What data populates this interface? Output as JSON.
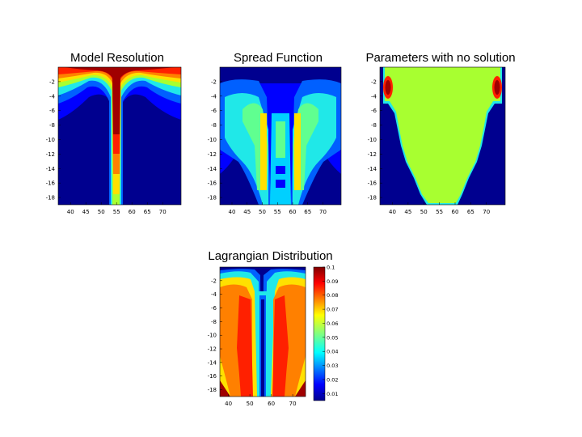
{
  "chart_data": [
    {
      "type": "heatmap",
      "title": "Model Resolution",
      "x_ticks": [
        "40",
        "45",
        "50",
        "55",
        "60",
        "65",
        "70"
      ],
      "y_ticks": [
        "-2",
        "-4",
        "-6",
        "-8",
        "-10",
        "-12",
        "-14",
        "-16",
        "-18"
      ],
      "xlim": [
        36,
        76
      ],
      "ylim": [
        -19,
        0
      ],
      "pattern": "strong values near the surface everywhere, deep narrow high-value column centred near x=55, background low"
    },
    {
      "type": "heatmap",
      "title": "Spread Function",
      "x_ticks": [
        "40",
        "45",
        "50",
        "55",
        "60",
        "65",
        "70"
      ],
      "y_ticks": [
        "-2",
        "-4",
        "-6",
        "-8",
        "-10",
        "-12",
        "-14",
        "-16",
        "-18"
      ],
      "xlim": [
        36,
        76
      ],
      "ylim": [
        -19,
        0
      ],
      "pattern": "two high-value vertical bands near x=50 and x=60, low surface layer, mid-level fill between"
    },
    {
      "type": "heatmap",
      "title": "Parameters with no solution",
      "x_ticks": [
        "40",
        "45",
        "50",
        "55",
        "60",
        "65",
        "70"
      ],
      "y_ticks": [
        "-2",
        "-4",
        "-6",
        "-8",
        "-10",
        "-12",
        "-14",
        "-16",
        "-18"
      ],
      "xlim": [
        36,
        76
      ],
      "ylim": [
        -19,
        0
      ],
      "pattern": "large uniform region tapering with depth, small high-value spots near top corners x=39 and x=73"
    },
    {
      "type": "heatmap",
      "title": "Lagrangian Distribution",
      "x_ticks": [
        "40",
        "50",
        "60",
        "70"
      ],
      "y_ticks": [
        "-2",
        "-4",
        "-6",
        "-8",
        "-10",
        "-12",
        "-14",
        "-16",
        "-18"
      ],
      "xlim": [
        36,
        76
      ],
      "ylim": [
        -19,
        0
      ],
      "colorbar_ticks": [
        "0.1",
        "0.09",
        "0.08",
        "0.07",
        "0.06",
        "0.05",
        "0.04",
        "0.03",
        "0.02",
        "0.01"
      ],
      "colorbar_range": [
        0.005,
        0.1
      ],
      "pattern": "high values over most of the domain, low narrow column near x=56, lower values near surface"
    }
  ],
  "colors": {
    "darkblue": "#00008f",
    "blue": "#0000ff",
    "lightblue": "#0060ff",
    "cyan": "#00d0ff",
    "aqua": "#20e8e8",
    "green": "#60ff90",
    "yellowgreen": "#a8ff30",
    "yellow": "#ffe000",
    "orange": "#ff8000",
    "red": "#ff2000",
    "darkred": "#a00000"
  }
}
